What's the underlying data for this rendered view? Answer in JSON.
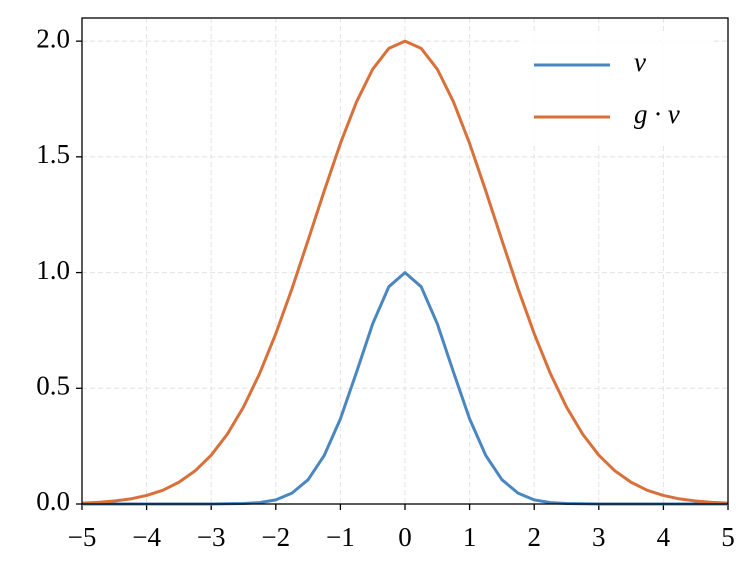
{
  "chart_data": {
    "type": "line",
    "x": [
      -5,
      -4.75,
      -4.5,
      -4.25,
      -4,
      -3.75,
      -3.5,
      -3.25,
      -3,
      -2.75,
      -2.5,
      -2.25,
      -2,
      -1.75,
      -1.5,
      -1.25,
      -1,
      -0.75,
      -0.5,
      -0.25,
      0,
      0.25,
      0.5,
      0.75,
      1,
      1.25,
      1.5,
      1.75,
      2,
      2.25,
      2.5,
      2.75,
      3,
      3.25,
      3.5,
      3.75,
      4,
      4.25,
      4.5,
      4.75,
      5
    ],
    "series": [
      {
        "name": "v",
        "color": "#4a87c0",
        "values": [
          0,
          0,
          0,
          0,
          0,
          0,
          0,
          0,
          0,
          0.001,
          0.002,
          0.006,
          0.018,
          0.047,
          0.105,
          0.21,
          0.368,
          0.57,
          0.779,
          0.939,
          1,
          0.939,
          0.779,
          0.57,
          0.368,
          0.21,
          0.105,
          0.047,
          0.018,
          0.006,
          0.002,
          0.001,
          0,
          0,
          0,
          0,
          0,
          0,
          0,
          0,
          0
        ]
      },
      {
        "name": "g · v",
        "color": "#d9703a",
        "values": [
          0.004,
          0.007,
          0.013,
          0.022,
          0.037,
          0.059,
          0.094,
          0.143,
          0.211,
          0.302,
          0.419,
          0.564,
          0.736,
          0.93,
          1.14,
          1.353,
          1.558,
          1.738,
          1.879,
          1.969,
          2,
          1.969,
          1.879,
          1.738,
          1.558,
          1.353,
          1.14,
          0.93,
          0.736,
          0.564,
          0.419,
          0.302,
          0.211,
          0.143,
          0.094,
          0.059,
          0.037,
          0.022,
          0.013,
          0.007,
          0.004
        ]
      }
    ],
    "xlim": [
      -5,
      5
    ],
    "xticks": [
      {
        "value": -5,
        "label": "−5"
      },
      {
        "value": -4,
        "label": "−4"
      },
      {
        "value": -3,
        "label": "−3"
      },
      {
        "value": -2,
        "label": "−2"
      },
      {
        "value": -1,
        "label": "−1"
      },
      0,
      1,
      2,
      3,
      4,
      5
    ],
    "ylim": [
      0,
      2.1
    ],
    "yticks": [
      {
        "value": 0,
        "label": "0.0"
      },
      0.5,
      {
        "value": 1,
        "label": "1.0"
      },
      1.5,
      {
        "value": 2,
        "label": "2.0"
      }
    ],
    "grid": true,
    "legend": "upper right"
  }
}
